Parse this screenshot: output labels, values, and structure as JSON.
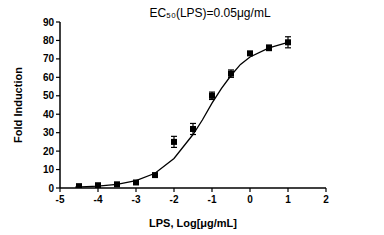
{
  "chart_data": {
    "type": "scatter",
    "title": "EC₅₀(LPS)=0.05μg/mL",
    "x_label": "LPS, Log[μg/mL]",
    "y_label": "Fold Induction",
    "xlim": [
      -5,
      2
    ],
    "xticks": [
      -5,
      -4,
      -3,
      -2,
      -1,
      0,
      1,
      2
    ],
    "ylim": [
      0,
      90
    ],
    "yticks": [
      0,
      10,
      20,
      30,
      40,
      50,
      60,
      70,
      80,
      90
    ],
    "grid": false,
    "series": [
      {
        "type": "scatter",
        "color": "#000000",
        "marker": "square",
        "x": [
          -4.5,
          -4,
          -3.5,
          -3,
          -2.5,
          -2,
          -1.5,
          -1,
          -0.5,
          0,
          0.5,
          1
        ],
        "values": [
          1,
          1.5,
          2,
          3,
          7,
          25,
          32,
          50,
          62,
          73,
          76,
          79
        ],
        "errors": [
          0.5,
          0.5,
          0.5,
          0.5,
          0.5,
          3,
          3,
          2,
          2,
          1,
          1.5,
          3
        ]
      },
      {
        "type": "line",
        "color": "#000000",
        "line_style": "solid",
        "x": [
          -4.6,
          -4,
          -3.5,
          -3,
          -2.5,
          -2,
          -1.5,
          -1.25,
          -1,
          -0.75,
          -0.5,
          -0.25,
          0,
          0.5,
          1
        ],
        "values": [
          0.5,
          1,
          2,
          4,
          8,
          16,
          29,
          37,
          46,
          54,
          61,
          67,
          71,
          76,
          79
        ]
      }
    ]
  }
}
